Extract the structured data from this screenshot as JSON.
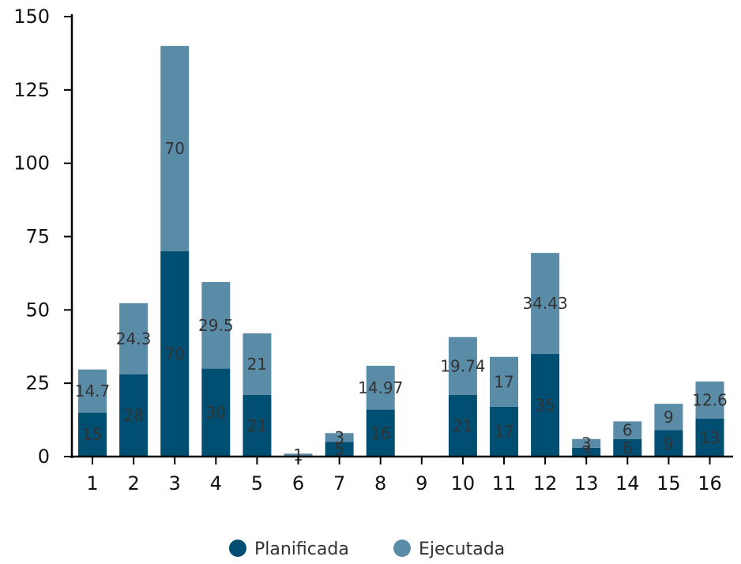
{
  "chart_data": {
    "type": "bar",
    "stacked": true,
    "title": "",
    "xlabel": "",
    "ylabel": "",
    "categories": [
      "1",
      "2",
      "3",
      "4",
      "5",
      "6",
      "7",
      "8",
      "9",
      "10",
      "11",
      "12",
      "13",
      "14",
      "15",
      "16"
    ],
    "series": [
      {
        "name": "Planificada",
        "color": "#004e72",
        "values": [
          15,
          28,
          70,
          30,
          21,
          0,
          5,
          16,
          0,
          21,
          17,
          35,
          3,
          6,
          9,
          13
        ],
        "labels": [
          "15",
          "28",
          "70",
          "30",
          "21",
          "",
          "5",
          "16",
          "",
          "21",
          "17",
          "35",
          "3",
          "6",
          "9",
          "13"
        ]
      },
      {
        "name": "Ejecutada",
        "color": "#5a8ba7",
        "values": [
          14.7,
          24.3,
          70,
          29.5,
          21,
          1,
          3,
          14.97,
          0,
          19.74,
          17,
          34.43,
          3,
          6,
          9,
          12.6
        ],
        "labels": [
          "14.7",
          "24.3",
          "70",
          "29.5",
          "21",
          "1",
          "3",
          "14.97",
          "",
          "19.74",
          "17",
          "34.43",
          "3",
          "6",
          "9",
          "12.6"
        ]
      }
    ],
    "ylim": [
      0,
      150
    ],
    "yticks": [
      0,
      25,
      50,
      75,
      100,
      125,
      150
    ],
    "grid": false,
    "legend": "bottom-center"
  }
}
